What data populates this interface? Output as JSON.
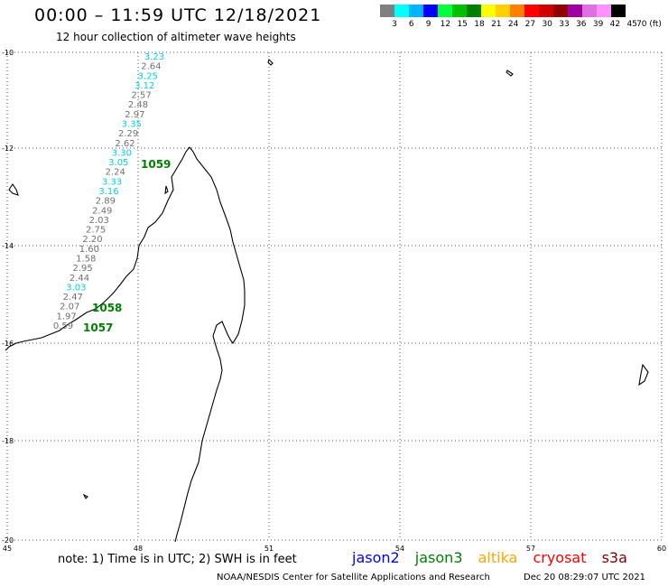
{
  "title": "00:00 – 11:59 UTC 12/18/2021",
  "subtitle": "12 hour collection of altimeter wave heights",
  "colorbar": {
    "colors": [
      "#808080",
      "#00ffff",
      "#00b4ff",
      "#0000ff",
      "#00ff40",
      "#00c000",
      "#008000",
      "#ffff00",
      "#ffd000",
      "#ff8000",
      "#ff0000",
      "#d00000",
      "#900000",
      "#a000a0",
      "#e070e0",
      "#ff90ff",
      "#000000"
    ],
    "labels": [
      "3",
      "6",
      "9",
      "12",
      "15",
      "18",
      "21",
      "24",
      "27",
      "30",
      "33",
      "36",
      "39",
      "42",
      "45",
      "70 (ft)"
    ]
  },
  "axes": {
    "lat_ticks": [
      "-10",
      "-12",
      "-14",
      "-16",
      "-18",
      "-20"
    ],
    "lon_ticks": [
      "45",
      "48",
      "51",
      "54",
      "57",
      "60"
    ]
  },
  "swh_values": [
    {
      "v": "3.23",
      "c": "cyan"
    },
    {
      "v": "2.64",
      "c": "gray"
    },
    {
      "v": "3.25",
      "c": "cyan"
    },
    {
      "v": "3.12",
      "c": "cyan"
    },
    {
      "v": "2.57",
      "c": "gray"
    },
    {
      "v": "2.48",
      "c": "gray"
    },
    {
      "v": "2.97",
      "c": "gray"
    },
    {
      "v": "3.35",
      "c": "cyan"
    },
    {
      "v": "2.29",
      "c": "gray"
    },
    {
      "v": "2.62",
      "c": "gray"
    },
    {
      "v": "3.30",
      "c": "cyan"
    },
    {
      "v": "3.05",
      "c": "cyan"
    },
    {
      "v": "2.24",
      "c": "gray"
    },
    {
      "v": "3.33",
      "c": "cyan"
    },
    {
      "v": "3.16",
      "c": "cyan"
    },
    {
      "v": "2.89",
      "c": "gray"
    },
    {
      "v": "2.49",
      "c": "gray"
    },
    {
      "v": "2.03",
      "c": "gray"
    },
    {
      "v": "2.75",
      "c": "gray"
    },
    {
      "v": "2.20",
      "c": "gray"
    },
    {
      "v": "1.60",
      "c": "gray"
    },
    {
      "v": "1.58",
      "c": "gray"
    },
    {
      "v": "2.95",
      "c": "gray"
    },
    {
      "v": "2.44",
      "c": "gray"
    },
    {
      "v": "3.03",
      "c": "cyan"
    },
    {
      "v": "2.47",
      "c": "gray"
    },
    {
      "v": "2.07",
      "c": "gray"
    },
    {
      "v": "1.97",
      "c": "gray"
    },
    {
      "v": "0.59",
      "c": "gray"
    }
  ],
  "pass_times": [
    "1059",
    "1058",
    "1057"
  ],
  "note": "note: 1) Time is in UTC; 2) SWH is in feet",
  "legend": [
    {
      "name": "jason2",
      "color": "#0000ff"
    },
    {
      "name": "jason3",
      "color": "#008000"
    },
    {
      "name": "altika",
      "color": "#ffa500"
    },
    {
      "name": "cryosat",
      "color": "#ff0000"
    },
    {
      "name": "s3a",
      "color": "#800000"
    }
  ],
  "credit": "NOAA/NESDIS Center for Satellite Applications and Research",
  "timestamp": "Dec 20 08:29:07 UTC 2021"
}
